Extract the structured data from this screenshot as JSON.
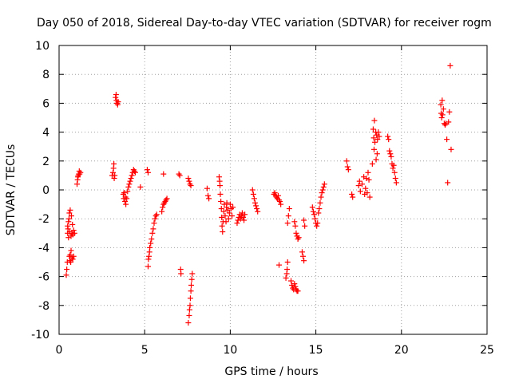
{
  "chart_data": {
    "type": "scatter",
    "title": "Day 050 of 2018, Sidereal Day-to-day VTEC variation (SDTVAR) for receiver rogm",
    "xlabel": "GPS time / hours",
    "ylabel": "SDTVAR / TECUs",
    "xlim": [
      0,
      25
    ],
    "ylim": [
      -10,
      10
    ],
    "xticks": [
      0,
      5,
      10,
      15,
      20,
      25
    ],
    "yticks": [
      -10,
      -8,
      -6,
      -4,
      -2,
      0,
      2,
      4,
      6,
      8,
      10
    ],
    "grid": true,
    "marker": "+",
    "color": "#ff0000",
    "series": [
      {
        "name": "SDTVAR",
        "points": [
          [
            0.42,
            -5.9
          ],
          [
            0.45,
            -5.5
          ],
          [
            0.48,
            -5.0
          ],
          [
            0.5,
            -3.0
          ],
          [
            0.5,
            -2.5
          ],
          [
            0.52,
            -2.7
          ],
          [
            0.55,
            -2.2
          ],
          [
            0.55,
            -3.3
          ],
          [
            0.58,
            -2.0
          ],
          [
            0.6,
            -4.6
          ],
          [
            0.6,
            -1.6
          ],
          [
            0.62,
            -4.9
          ],
          [
            0.62,
            -2.9
          ],
          [
            0.65,
            -4.5
          ],
          [
            0.65,
            -1.4
          ],
          [
            0.68,
            -5.0
          ],
          [
            0.7,
            -4.2
          ],
          [
            0.7,
            -3.2
          ],
          [
            0.72,
            -1.8
          ],
          [
            0.75,
            -4.7
          ],
          [
            0.75,
            -3.0
          ],
          [
            0.78,
            -2.4
          ],
          [
            0.8,
            -4.8
          ],
          [
            0.8,
            -3.1
          ],
          [
            0.85,
            -4.6
          ],
          [
            0.85,
            -2.8
          ],
          [
            0.9,
            -3.0
          ],
          [
            1.05,
            0.4
          ],
          [
            1.08,
            0.7
          ],
          [
            1.1,
            0.9
          ],
          [
            1.12,
            1.0
          ],
          [
            1.15,
            1.1
          ],
          [
            1.18,
            1.3
          ],
          [
            1.2,
            1.1
          ],
          [
            1.25,
            1.2
          ],
          [
            3.1,
            1.0
          ],
          [
            3.15,
            1.2
          ],
          [
            3.18,
            1.5
          ],
          [
            3.2,
            1.8
          ],
          [
            3.22,
            0.8
          ],
          [
            3.25,
            1.0
          ],
          [
            3.3,
            6.4
          ],
          [
            3.33,
            6.6
          ],
          [
            3.35,
            6.2
          ],
          [
            3.38,
            6.0
          ],
          [
            3.42,
            5.9
          ],
          [
            3.45,
            6.1
          ],
          [
            3.75,
            -0.3
          ],
          [
            3.78,
            -0.6
          ],
          [
            3.8,
            -0.2
          ],
          [
            3.85,
            -0.8
          ],
          [
            3.88,
            -0.5
          ],
          [
            3.9,
            -1.0
          ],
          [
            3.95,
            -0.6
          ],
          [
            4.0,
            -0.1
          ],
          [
            4.05,
            0.2
          ],
          [
            4.1,
            0.4
          ],
          [
            4.15,
            0.6
          ],
          [
            4.2,
            0.8
          ],
          [
            4.25,
            1.0
          ],
          [
            4.3,
            1.2
          ],
          [
            4.35,
            1.4
          ],
          [
            4.4,
            1.3
          ],
          [
            4.45,
            1.2
          ],
          [
            4.75,
            0.2
          ],
          [
            5.15,
            1.4
          ],
          [
            5.2,
            1.2
          ],
          [
            5.2,
            -5.3
          ],
          [
            5.22,
            -4.8
          ],
          [
            5.25,
            -4.6
          ],
          [
            5.28,
            -4.3
          ],
          [
            5.3,
            -4.0
          ],
          [
            5.35,
            -3.7
          ],
          [
            5.4,
            -3.4
          ],
          [
            5.45,
            -3.0
          ],
          [
            5.5,
            -2.7
          ],
          [
            5.55,
            -2.3
          ],
          [
            5.6,
            -2.0
          ],
          [
            5.65,
            -1.8
          ],
          [
            5.7,
            -1.7
          ],
          [
            6.0,
            -1.5
          ],
          [
            6.05,
            -1.2
          ],
          [
            6.1,
            -1.0
          ],
          [
            6.15,
            -0.9
          ],
          [
            6.2,
            -0.8
          ],
          [
            6.25,
            -0.7
          ],
          [
            6.3,
            -0.6
          ],
          [
            6.1,
            1.1
          ],
          [
            7.0,
            1.1
          ],
          [
            7.05,
            1.0
          ],
          [
            7.1,
            -5.5
          ],
          [
            7.12,
            -5.8
          ],
          [
            7.55,
            0.8
          ],
          [
            7.6,
            0.6
          ],
          [
            7.65,
            0.4
          ],
          [
            7.7,
            0.3
          ],
          [
            7.55,
            -9.2
          ],
          [
            7.6,
            -8.7
          ],
          [
            7.62,
            -8.3
          ],
          [
            7.65,
            -8.0
          ],
          [
            7.67,
            -7.5
          ],
          [
            7.7,
            -7.0
          ],
          [
            7.72,
            -6.6
          ],
          [
            7.75,
            -6.2
          ],
          [
            7.78,
            -5.8
          ],
          [
            8.65,
            0.1
          ],
          [
            8.7,
            -0.4
          ],
          [
            8.75,
            -0.6
          ],
          [
            9.35,
            0.9
          ],
          [
            9.38,
            0.6
          ],
          [
            9.4,
            0.3
          ],
          [
            9.42,
            -0.3
          ],
          [
            9.45,
            -0.8
          ],
          [
            9.48,
            -1.3
          ],
          [
            9.5,
            -1.9
          ],
          [
            9.52,
            -2.5
          ],
          [
            9.55,
            -2.9
          ],
          [
            9.58,
            -2.2
          ],
          [
            9.62,
            -1.5
          ],
          [
            9.65,
            -1.0
          ],
          [
            9.7,
            -1.8
          ],
          [
            9.75,
            -2.2
          ],
          [
            9.78,
            -1.2
          ],
          [
            9.8,
            -0.9
          ],
          [
            9.85,
            -1.4
          ],
          [
            9.9,
            -2.0
          ],
          [
            9.95,
            -1.6
          ],
          [
            10.0,
            -1.0
          ],
          [
            10.05,
            -1.3
          ],
          [
            10.1,
            -1.8
          ],
          [
            10.15,
            -1.2
          ],
          [
            10.4,
            -2.3
          ],
          [
            10.45,
            -2.1
          ],
          [
            10.5,
            -1.9
          ],
          [
            10.55,
            -1.7
          ],
          [
            10.6,
            -2.0
          ],
          [
            10.65,
            -1.8
          ],
          [
            10.7,
            -1.6
          ],
          [
            10.75,
            -1.9
          ],
          [
            10.8,
            -2.1
          ],
          [
            10.85,
            -1.7
          ],
          [
            11.3,
            0.0
          ],
          [
            11.35,
            -0.3
          ],
          [
            11.4,
            -0.6
          ],
          [
            11.45,
            -0.9
          ],
          [
            11.5,
            -1.1
          ],
          [
            11.55,
            -1.3
          ],
          [
            11.6,
            -1.5
          ],
          [
            12.55,
            -0.3
          ],
          [
            12.6,
            -0.2
          ],
          [
            12.65,
            -0.4
          ],
          [
            12.7,
            -0.5
          ],
          [
            12.75,
            -0.6
          ],
          [
            12.8,
            -0.4
          ],
          [
            12.85,
            -0.7
          ],
          [
            12.9,
            -0.8
          ],
          [
            12.95,
            -1.0
          ],
          [
            12.85,
            -5.2
          ],
          [
            13.25,
            -6.1
          ],
          [
            13.3,
            -5.8
          ],
          [
            13.32,
            -5.5
          ],
          [
            13.35,
            -5.0
          ],
          [
            13.35,
            -2.3
          ],
          [
            13.4,
            -1.8
          ],
          [
            13.45,
            -1.3
          ],
          [
            13.55,
            -6.3
          ],
          [
            13.6,
            -6.6
          ],
          [
            13.65,
            -6.8
          ],
          [
            13.7,
            -6.9
          ],
          [
            13.75,
            -6.5
          ],
          [
            13.8,
            -6.7
          ],
          [
            13.85,
            -6.9
          ],
          [
            13.9,
            -7.0
          ],
          [
            13.95,
            -7.0
          ],
          [
            13.75,
            -2.2
          ],
          [
            13.8,
            -2.5
          ],
          [
            13.85,
            -3.0
          ],
          [
            13.9,
            -3.2
          ],
          [
            13.95,
            -3.4
          ],
          [
            14.0,
            -3.3
          ],
          [
            14.2,
            -4.3
          ],
          [
            14.25,
            -4.6
          ],
          [
            14.3,
            -4.9
          ],
          [
            14.3,
            -2.1
          ],
          [
            14.35,
            -2.5
          ],
          [
            14.8,
            -1.2
          ],
          [
            14.85,
            -1.5
          ],
          [
            14.9,
            -1.7
          ],
          [
            14.95,
            -2.0
          ],
          [
            15.0,
            -2.3
          ],
          [
            15.05,
            -2.5
          ],
          [
            15.1,
            -2.3
          ],
          [
            15.15,
            -1.6
          ],
          [
            15.2,
            -1.3
          ],
          [
            15.25,
            -0.9
          ],
          [
            15.3,
            -0.5
          ],
          [
            15.35,
            -0.2
          ],
          [
            15.4,
            0.0
          ],
          [
            15.45,
            0.2
          ],
          [
            15.5,
            0.4
          ],
          [
            16.8,
            2.0
          ],
          [
            16.85,
            1.6
          ],
          [
            16.9,
            1.4
          ],
          [
            17.1,
            -0.3
          ],
          [
            17.15,
            -0.5
          ],
          [
            17.5,
            0.3
          ],
          [
            17.55,
            0.6
          ],
          [
            17.6,
            -0.1
          ],
          [
            17.7,
            0.4
          ],
          [
            17.8,
            0.9
          ],
          [
            17.85,
            -0.3
          ],
          [
            17.9,
            0.1
          ],
          [
            17.95,
            0.8
          ],
          [
            18.0,
            -0.2
          ],
          [
            18.05,
            1.2
          ],
          [
            18.1,
            0.7
          ],
          [
            18.15,
            -0.5
          ],
          [
            18.3,
            1.8
          ],
          [
            18.35,
            4.2
          ],
          [
            18.38,
            3.6
          ],
          [
            18.4,
            2.8
          ],
          [
            18.42,
            4.8
          ],
          [
            18.45,
            3.3
          ],
          [
            18.5,
            4.0
          ],
          [
            18.52,
            2.1
          ],
          [
            18.55,
            3.8
          ],
          [
            18.58,
            2.5
          ],
          [
            18.6,
            3.5
          ],
          [
            18.65,
            4.0
          ],
          [
            18.7,
            3.7
          ],
          [
            19.2,
            3.7
          ],
          [
            19.25,
            3.5
          ],
          [
            19.3,
            2.7
          ],
          [
            19.35,
            2.5
          ],
          [
            19.4,
            2.3
          ],
          [
            19.45,
            1.8
          ],
          [
            19.5,
            1.5
          ],
          [
            19.55,
            1.7
          ],
          [
            19.6,
            1.2
          ],
          [
            19.65,
            0.8
          ],
          [
            19.7,
            0.5
          ],
          [
            22.3,
            5.9
          ],
          [
            22.32,
            5.3
          ],
          [
            22.35,
            5.0
          ],
          [
            22.38,
            6.2
          ],
          [
            22.4,
            5.2
          ],
          [
            22.45,
            5.6
          ],
          [
            22.5,
            4.6
          ],
          [
            22.55,
            4.5
          ],
          [
            22.6,
            4.6
          ],
          [
            22.65,
            3.5
          ],
          [
            22.7,
            0.5
          ],
          [
            22.75,
            4.7
          ],
          [
            22.8,
            5.4
          ],
          [
            22.85,
            8.6
          ],
          [
            22.9,
            2.8
          ]
        ]
      }
    ]
  }
}
